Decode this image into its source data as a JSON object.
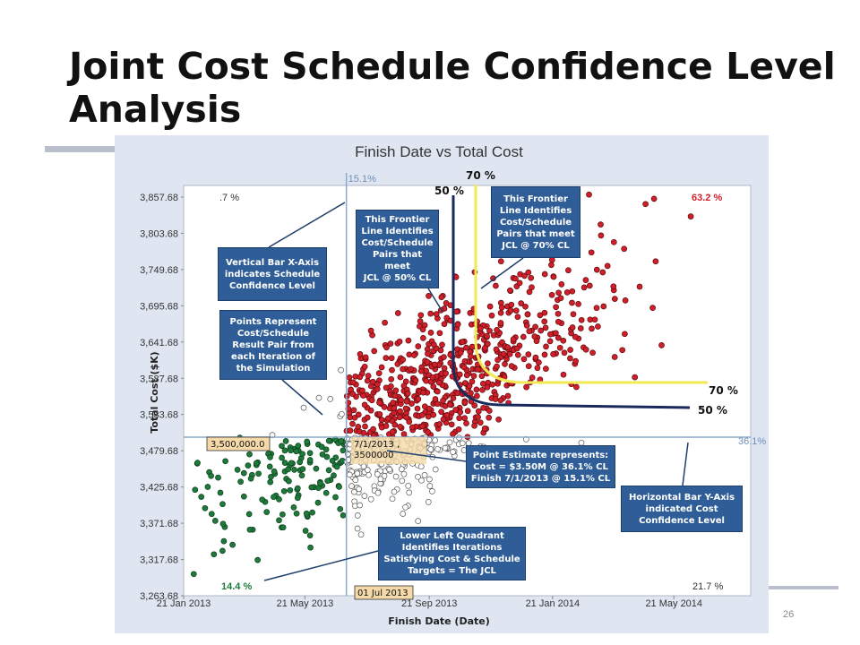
{
  "slide": {
    "title": "Joint Cost Schedule Confidence Level Analysis",
    "page_number": "26"
  },
  "chart_data": {
    "type": "scatter",
    "title": "Finish Date vs Total Cost",
    "xlabel": "Finish Date (Date)",
    "ylabel": "Total Cost ($K)",
    "x_tick_labels": [
      "21 Jan 2013",
      "21 May 2013",
      "21 Sep 2013",
      "21 Jan 2014",
      "21 May 2014"
    ],
    "x_ticks": [
      "2013-01-21",
      "2013-05-21",
      "2013-09-21",
      "2014-01-21",
      "2014-05-21"
    ],
    "xlim": [
      "2013-01-21",
      "2014-08-05"
    ],
    "y_ticks": [
      3263.68,
      3317.68,
      3371.68,
      3425.68,
      3479.68,
      3533.68,
      3587.68,
      3641.68,
      3695.68,
      3749.68,
      3803.68,
      3857.68
    ],
    "y_tick_labels": [
      "3,263.68",
      "3,317.68",
      "3,371.68",
      "3,425.68",
      "3,479.68",
      "3,533.68",
      "3,587.68",
      "3,641.68",
      "3,695.68",
      "3,749.68",
      "3,803.68",
      "3,857.68"
    ],
    "ylim": [
      3263.68,
      3875
    ],
    "point_estimate": {
      "date": "2013-07-01",
      "cost": 3500.0
    },
    "schedule_confidence_label": "15.1%",
    "cost_confidence_label": "36.1%",
    "cost_tag": "3,500,000.0",
    "date_tag": "01 Jul 2013",
    "point_tag": "7/1/2013 ,\n3500000",
    "quadrant_labels": {
      "upper_left": ".7 %",
      "upper_right": "63.2 %",
      "lower_left": "14.4 %",
      "lower_right": "21.7 %"
    },
    "frontier_labels": {
      "fifty_top": "50 %",
      "seventy_top": "70 %",
      "fifty_right": "50 %",
      "seventy_right": "70 %"
    },
    "colors": {
      "upper_right": "#d11f2a",
      "lower_left": "#1e7a3a",
      "lower_right": "#ffffff",
      "upper_left": "#ffffff",
      "line_50": "#1b2a5c",
      "line_70": "#f2ea55",
      "crosshair": "#8aa9cc",
      "callout": "#2f5d97",
      "tag": "#f5d9a8"
    },
    "scatter": {
      "iterations": 1000,
      "quadrant_counts": {
        "upper_right": 632,
        "lower_left": 144,
        "lower_right": 217,
        "upper_left": 7
      }
    }
  },
  "callouts": {
    "vertical_bar": "Vertical Bar X-Axis\nindicates Schedule\nConfidence Level",
    "points_represent": "Points Represent\nCost/Schedule\nResult Pair  from\neach Iteration of\nthe Simulation",
    "frontier_50": "This Frontier\nLine Identifies\nCost/Schedule\nPairs that meet\nJCL @ 50% CL",
    "frontier_70": "This Frontier\nLine Identifies\nCost/Schedule\nPairs that meet\nJCL @ 70% CL",
    "point_estimate": "Point Estimate represents:\nCost  =  $3.50M   @ 36.1% CL\nFinish 7/1/2013  @ 15.1% CL",
    "horizontal_bar": "Horizontal Bar Y-Axis\nindicated Cost\nConfidence Level",
    "lower_left": "Lower Left Quadrant\nIdentifies Iterations\nSatisfying Cost & Schedule\nTargets  = The JCL"
  }
}
